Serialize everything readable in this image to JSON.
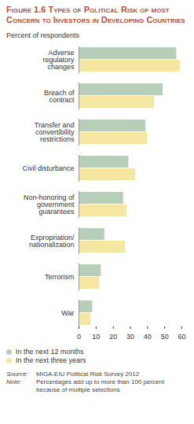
{
  "chart_data": {
    "type": "bar",
    "orientation": "horizontal",
    "title": "Figure 1.6 Types of Political Risk of most Concern to Investors in Developing Countries",
    "subtitle": "Percent of respondents",
    "categories": [
      "Adverse regulatory changes",
      "Breach of contract",
      "Transfer and convertibility restrictions",
      "Civil disturbance",
      "Non-honoring of government guarantees",
      "Expropriation/nationalization",
      "Terrorism",
      "War"
    ],
    "series": [
      {
        "name": "In the next 12 months",
        "color": "#b7cfb9",
        "values": [
          57,
          49,
          39,
          29,
          26,
          15,
          13,
          8
        ]
      },
      {
        "name": "In the next three years",
        "color": "#f5e6a2",
        "values": [
          59,
          44,
          40,
          33,
          28,
          27,
          12,
          7
        ]
      }
    ],
    "xlim": [
      0,
      60
    ],
    "xticks": [
      0,
      10,
      20,
      30,
      40,
      50,
      60
    ],
    "legend": "bottom",
    "footnotes": [
      {
        "label": "Source:",
        "text": "MIGA-EIU Political Risk Survey 2012"
      },
      {
        "label": "Note:",
        "text": "Percentages add up to more than 100 percent because of multiple selections"
      }
    ]
  }
}
